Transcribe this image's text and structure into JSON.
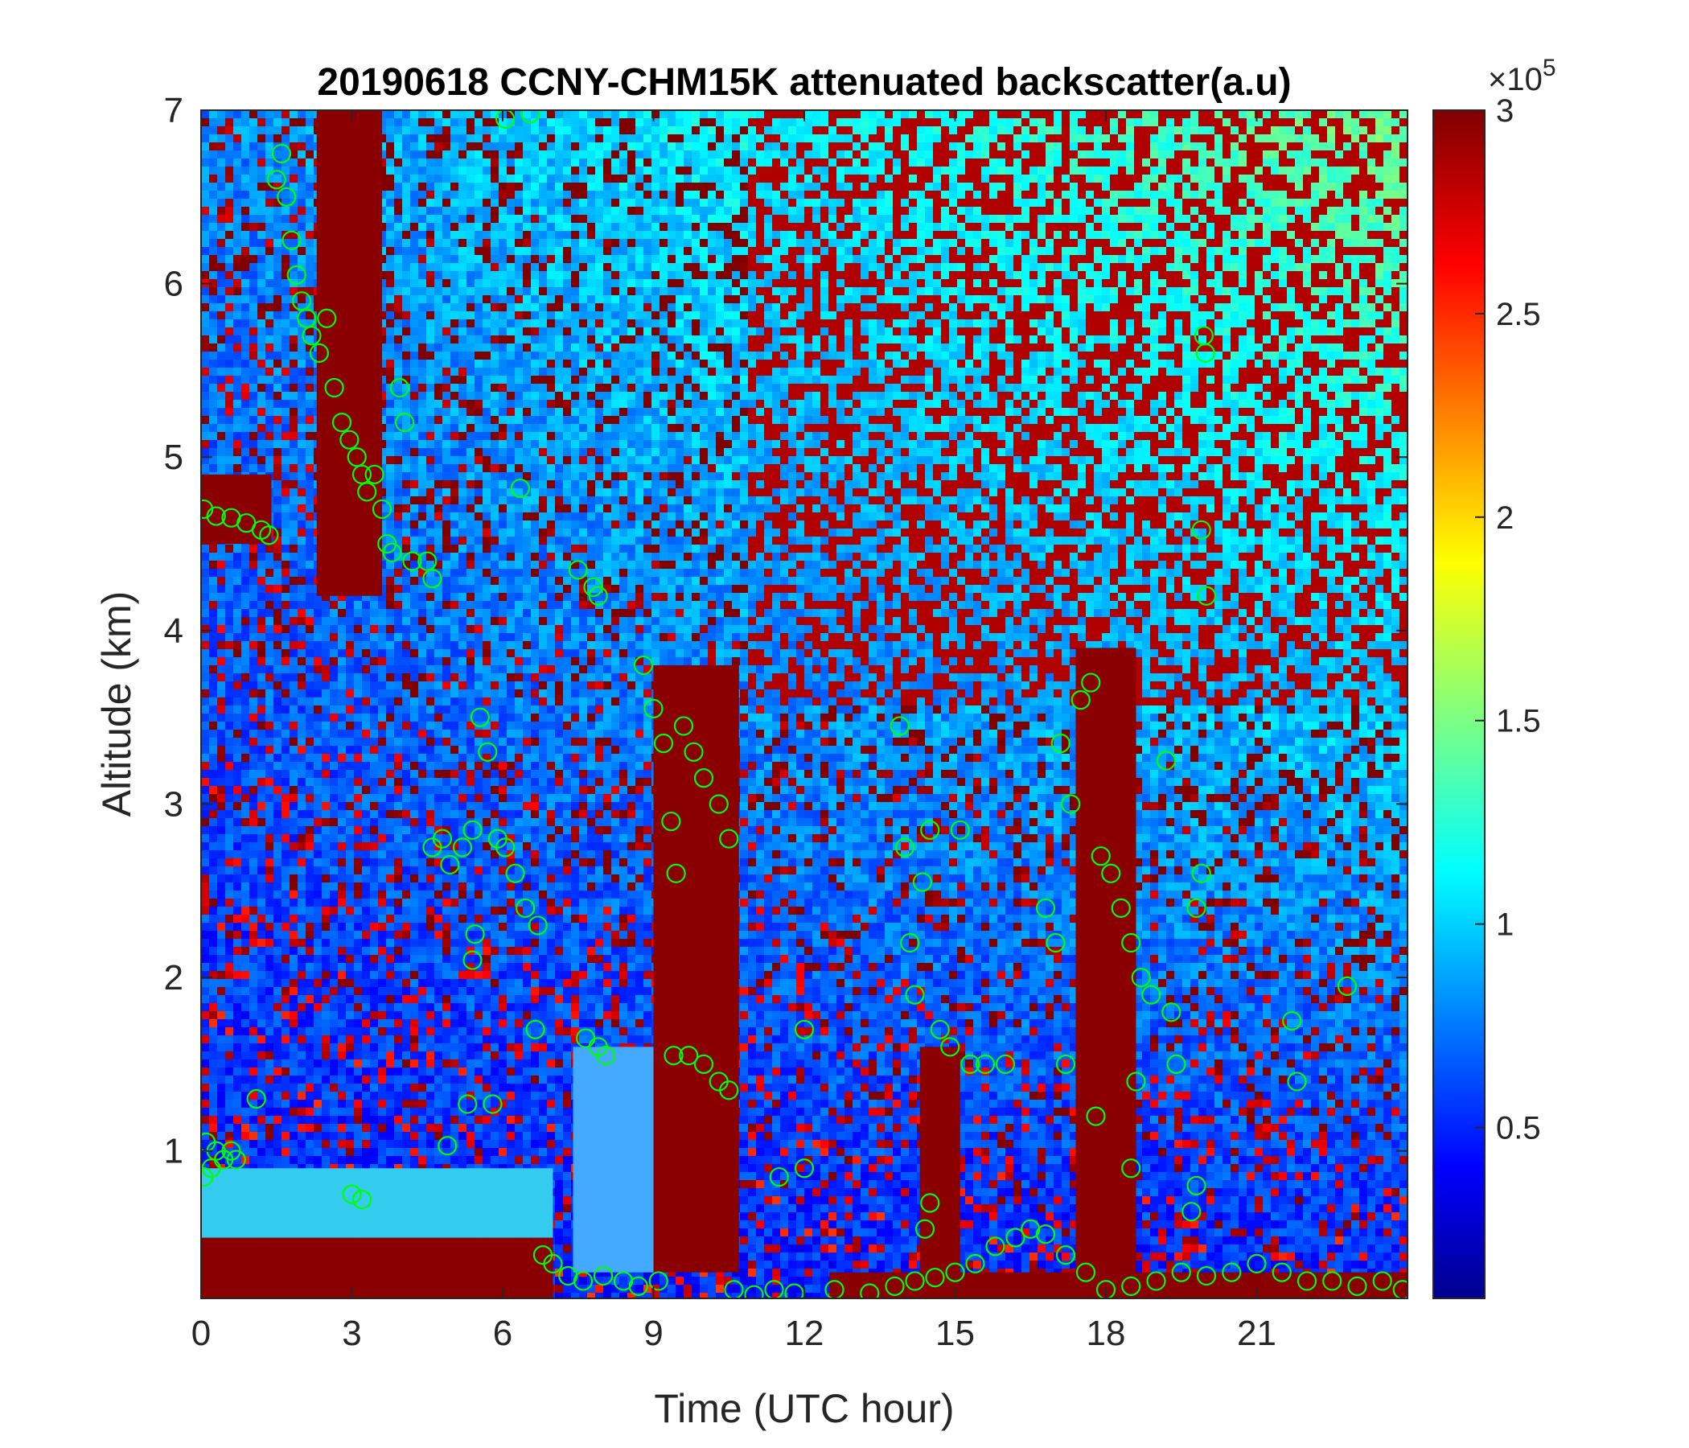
{
  "chart_data": {
    "type": "heatmap",
    "title": "20190618 CCNY-CHM15K attenuated backscatter(a.u)",
    "xlabel": "Time (UTC hour)",
    "ylabel": "Altitude (km)",
    "xlim": [
      0,
      24
    ],
    "ylim": [
      0.15,
      7
    ],
    "x_ticks": [
      "0",
      "3",
      "6",
      "9",
      "12",
      "15",
      "18",
      "21"
    ],
    "y_ticks": [
      "1",
      "2",
      "3",
      "4",
      "5",
      "6",
      "7"
    ],
    "colorbar": {
      "label": "",
      "exponent": "×10",
      "exponent_power": "5",
      "range": [
        0.08,
        3
      ],
      "ticks": [
        "0.5",
        "1",
        "1.5",
        "2",
        "2.5",
        "3"
      ],
      "colormap": "jet"
    },
    "color_notes": {
      "marker": "#00ff00",
      "background_low": "#00008f",
      "saturated": "#800000"
    },
    "series": [
      {
        "type": "scatter",
        "marker": "circle-open",
        "color": "#00ff00",
        "points": [
          [
            0.05,
            0.85
          ],
          [
            0.1,
            1.05
          ],
          [
            0.2,
            0.9
          ],
          [
            0.3,
            1.0
          ],
          [
            0.45,
            0.95
          ],
          [
            0.6,
            1.0
          ],
          [
            0.7,
            0.95
          ],
          [
            1.1,
            1.3
          ],
          [
            0.05,
            4.7
          ],
          [
            0.3,
            4.66
          ],
          [
            0.6,
            4.65
          ],
          [
            0.9,
            4.62
          ],
          [
            1.2,
            4.58
          ],
          [
            1.35,
            4.55
          ],
          [
            1.5,
            6.6
          ],
          [
            1.6,
            6.75
          ],
          [
            1.7,
            6.5
          ],
          [
            1.8,
            6.25
          ],
          [
            1.9,
            6.05
          ],
          [
            2.0,
            5.9
          ],
          [
            2.1,
            5.8
          ],
          [
            2.2,
            5.7
          ],
          [
            2.35,
            5.6
          ],
          [
            2.5,
            5.8
          ],
          [
            2.65,
            5.4
          ],
          [
            2.8,
            5.2
          ],
          [
            2.95,
            5.1
          ],
          [
            3.1,
            5.0
          ],
          [
            3.2,
            4.9
          ],
          [
            3.3,
            4.8
          ],
          [
            3.45,
            4.9
          ],
          [
            3.6,
            4.7
          ],
          [
            3.7,
            4.5
          ],
          [
            3.8,
            4.45
          ],
          [
            3.95,
            5.4
          ],
          [
            4.05,
            5.2
          ],
          [
            4.2,
            4.4
          ],
          [
            4.5,
            4.4
          ],
          [
            4.6,
            4.3
          ],
          [
            6.05,
            6.95
          ],
          [
            6.55,
            6.98
          ],
          [
            6.35,
            4.82
          ],
          [
            4.6,
            2.75
          ],
          [
            4.8,
            2.8
          ],
          [
            4.95,
            2.65
          ],
          [
            5.2,
            2.75
          ],
          [
            5.4,
            2.85
          ],
          [
            5.55,
            3.5
          ],
          [
            5.7,
            3.3
          ],
          [
            5.9,
            2.8
          ],
          [
            6.05,
            2.75
          ],
          [
            6.25,
            2.6
          ],
          [
            6.45,
            2.4
          ],
          [
            6.7,
            2.3
          ],
          [
            6.65,
            1.7
          ],
          [
            5.4,
            2.1
          ],
          [
            5.45,
            2.25
          ],
          [
            3.0,
            0.75
          ],
          [
            3.2,
            0.72
          ],
          [
            4.9,
            1.03
          ],
          [
            5.3,
            1.27
          ],
          [
            5.8,
            1.27
          ],
          [
            7.5,
            4.35
          ],
          [
            7.8,
            4.25
          ],
          [
            7.9,
            4.2
          ],
          [
            7.65,
            1.65
          ],
          [
            7.9,
            1.6
          ],
          [
            8.05,
            1.55
          ],
          [
            6.8,
            0.4
          ],
          [
            7.0,
            0.35
          ],
          [
            7.3,
            0.28
          ],
          [
            7.6,
            0.25
          ],
          [
            8.0,
            0.28
          ],
          [
            8.4,
            0.25
          ],
          [
            8.7,
            0.22
          ],
          [
            9.1,
            0.25
          ],
          [
            8.8,
            3.8
          ],
          [
            9.0,
            3.55
          ],
          [
            9.2,
            3.35
          ],
          [
            9.35,
            2.9
          ],
          [
            9.45,
            2.6
          ],
          [
            9.6,
            3.45
          ],
          [
            9.8,
            3.3
          ],
          [
            10.0,
            3.15
          ],
          [
            10.3,
            3.0
          ],
          [
            10.5,
            2.8
          ],
          [
            9.4,
            1.55
          ],
          [
            9.7,
            1.55
          ],
          [
            10.0,
            1.5
          ],
          [
            10.3,
            1.4
          ],
          [
            10.5,
            1.35
          ],
          [
            10.6,
            0.2
          ],
          [
            11.0,
            0.17
          ],
          [
            11.4,
            0.2
          ],
          [
            11.8,
            0.18
          ],
          [
            12.0,
            1.7
          ],
          [
            12.0,
            0.9
          ],
          [
            11.5,
            0.85
          ],
          [
            12.6,
            0.2
          ],
          [
            13.3,
            0.18
          ],
          [
            13.8,
            0.22
          ],
          [
            14.2,
            0.25
          ],
          [
            14.6,
            0.27
          ],
          [
            15.0,
            0.3
          ],
          [
            15.4,
            0.35
          ],
          [
            15.8,
            0.45
          ],
          [
            16.2,
            0.5
          ],
          [
            16.5,
            0.55
          ],
          [
            16.8,
            0.52
          ],
          [
            17.2,
            0.4
          ],
          [
            17.6,
            0.3
          ],
          [
            13.9,
            3.45
          ],
          [
            14.0,
            2.75
          ],
          [
            14.1,
            2.2
          ],
          [
            14.2,
            1.9
          ],
          [
            14.35,
            2.55
          ],
          [
            14.5,
            2.85
          ],
          [
            14.7,
            1.7
          ],
          [
            14.9,
            1.6
          ],
          [
            15.1,
            2.85
          ],
          [
            15.3,
            1.5
          ],
          [
            15.6,
            1.5
          ],
          [
            16.0,
            1.5
          ],
          [
            14.4,
            0.55
          ],
          [
            14.5,
            0.7
          ],
          [
            16.8,
            2.4
          ],
          [
            17.0,
            2.2
          ],
          [
            17.1,
            3.35
          ],
          [
            17.3,
            3.0
          ],
          [
            17.5,
            3.6
          ],
          [
            17.7,
            3.7
          ],
          [
            17.9,
            2.7
          ],
          [
            18.1,
            2.6
          ],
          [
            18.3,
            2.4
          ],
          [
            18.5,
            2.2
          ],
          [
            18.7,
            2.0
          ],
          [
            18.9,
            1.9
          ],
          [
            17.2,
            1.5
          ],
          [
            17.8,
            1.2
          ],
          [
            18.5,
            0.9
          ],
          [
            18.6,
            1.4
          ],
          [
            19.2,
            3.25
          ],
          [
            19.3,
            1.8
          ],
          [
            19.4,
            1.5
          ],
          [
            19.8,
            2.4
          ],
          [
            19.9,
            2.6
          ],
          [
            19.95,
            5.7
          ],
          [
            19.98,
            5.6
          ],
          [
            19.9,
            4.58
          ],
          [
            20.0,
            4.2
          ],
          [
            19.8,
            0.8
          ],
          [
            19.7,
            0.65
          ],
          [
            18.0,
            0.2
          ],
          [
            18.5,
            0.22
          ],
          [
            19.0,
            0.25
          ],
          [
            19.5,
            0.3
          ],
          [
            20.0,
            0.28
          ],
          [
            20.5,
            0.3
          ],
          [
            21.0,
            0.35
          ],
          [
            21.5,
            0.3
          ],
          [
            22.0,
            0.25
          ],
          [
            22.5,
            0.25
          ],
          [
            23.0,
            0.22
          ],
          [
            23.5,
            0.25
          ],
          [
            23.9,
            0.2
          ],
          [
            21.7,
            1.75
          ],
          [
            21.8,
            1.4
          ],
          [
            22.8,
            1.95
          ]
        ]
      }
    ]
  }
}
